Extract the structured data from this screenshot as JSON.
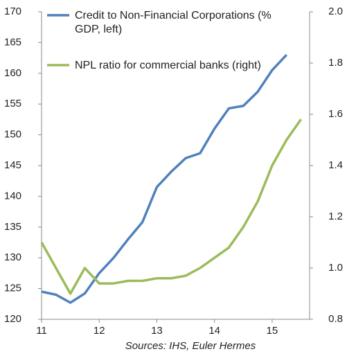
{
  "chart_data": {
    "type": "line",
    "source": "Sources: IHS, Euler Hermes",
    "series": [
      {
        "name": "Credit to Non-Financial Corporations (% GDP, left)",
        "color": "#4f81bd",
        "x": [
          11,
          11.25,
          11.5,
          11.75,
          12,
          12.25,
          12.5,
          12.75,
          13,
          13.25,
          13.5,
          13.75,
          14,
          14.25,
          14.5,
          14.75,
          15,
          15.25
        ],
        "values": [
          124.5,
          124.0,
          122.7,
          124.2,
          127.5,
          130,
          133,
          135.8,
          141.5,
          144,
          146.2,
          147,
          151,
          154.3,
          154.7,
          157,
          160.5,
          163
        ]
      },
      {
        "name": "NPL ratio for commercial banks (right)",
        "color": "#9bbb59",
        "axis": "y2",
        "x": [
          11,
          11.25,
          11.5,
          11.75,
          12,
          12.25,
          12.5,
          12.75,
          13,
          13.25,
          13.5,
          13.75,
          14,
          14.25,
          14.5,
          14.75,
          15,
          15.25,
          15.5
        ],
        "values": [
          1.1,
          1.0,
          0.9,
          1.0,
          0.94,
          0.94,
          0.95,
          0.95,
          0.96,
          0.96,
          0.97,
          1.0,
          1.04,
          1.08,
          1.16,
          1.26,
          1.4,
          1.5,
          1.58
        ]
      }
    ],
    "xlim": [
      11,
      15.65
    ],
    "xticks": [
      11,
      12,
      13,
      14,
      15
    ],
    "ylim": [
      120,
      170
    ],
    "yticks": [
      120,
      125,
      130,
      135,
      140,
      145,
      150,
      155,
      160,
      165,
      170
    ],
    "y2lim": [
      0.8,
      2.0
    ],
    "y2ticks": [
      {
        "value": 0.8,
        "label": "0.8"
      },
      {
        "value": 1.0,
        "label": "1.0"
      },
      {
        "value": 1.2,
        "label": "1.2"
      },
      {
        "value": 1.4,
        "label": "1.4"
      },
      {
        "value": 1.6,
        "label": "1.6"
      },
      {
        "value": 1.8,
        "label": "1.8"
      },
      {
        "value": 2.0,
        "label": "2.0"
      }
    ]
  }
}
